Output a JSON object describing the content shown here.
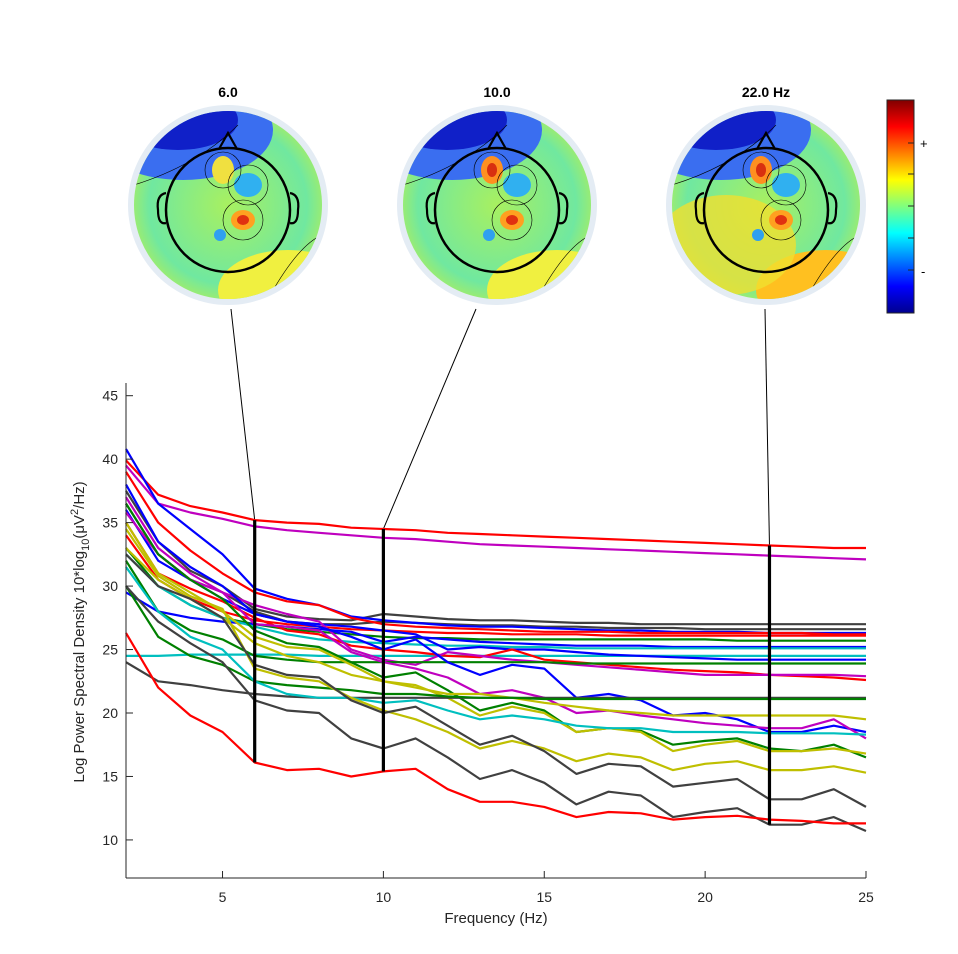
{
  "chart_data": {
    "type": "line",
    "xlabel": "Frequency (Hz)",
    "ylabel": {
      "prefix": "Log Power Spectral Density 10*log",
      "sub": "10",
      "mid": "(μV",
      "sup": "2",
      "suffix": "/Hz)"
    },
    "xlim": [
      2,
      25
    ],
    "ylim": [
      7,
      46
    ],
    "xticks": [
      5,
      10,
      15,
      20,
      25
    ],
    "yticks": [
      10,
      15,
      20,
      25,
      30,
      35,
      40,
      45
    ],
    "grid": false,
    "x": [
      2,
      3,
      4,
      5,
      6,
      7,
      8,
      9,
      10,
      11,
      12,
      13,
      14,
      15,
      16,
      17,
      18,
      19,
      20,
      21,
      22,
      23,
      24,
      25
    ],
    "series": [
      {
        "color": "#ff0000",
        "values": [
          39.9,
          37.2,
          36.3,
          35.8,
          35.2,
          35.0,
          34.9,
          34.6,
          34.5,
          34.4,
          34.2,
          34.1,
          34.0,
          33.9,
          33.8,
          33.7,
          33.6,
          33.5,
          33.4,
          33.3,
          33.2,
          33.1,
          33.0,
          33.0
        ]
      },
      {
        "color": "#bf00bf",
        "values": [
          39.5,
          36.5,
          35.8,
          35.3,
          34.7,
          34.4,
          34.2,
          34.0,
          33.8,
          33.7,
          33.5,
          33.3,
          33.2,
          33.1,
          33.0,
          32.9,
          32.8,
          32.7,
          32.6,
          32.5,
          32.4,
          32.3,
          32.2,
          32.1
        ]
      },
      {
        "color": "#404040",
        "values": [
          37.5,
          33.5,
          31.2,
          30.0,
          28.2,
          27.6,
          27.4,
          27.3,
          27.8,
          27.6,
          27.4,
          27.3,
          27.3,
          27.2,
          27.1,
          27.1,
          27.0,
          27.0,
          27.0,
          27.0,
          27.0,
          27.0,
          27.0,
          27.0
        ]
      },
      {
        "color": "#404040",
        "values": [
          36.5,
          32.5,
          30.5,
          29.5,
          28.0,
          27.2,
          27.0,
          27.0,
          27.2,
          27.1,
          27.0,
          26.9,
          26.9,
          26.8,
          26.8,
          26.7,
          26.7,
          26.7,
          26.6,
          26.6,
          26.6,
          26.6,
          26.6,
          26.6
        ]
      },
      {
        "color": "#0000ff",
        "values": [
          40.8,
          36.5,
          34.5,
          32.5,
          29.8,
          29.0,
          28.5,
          27.6,
          27.3,
          27.1,
          26.9,
          26.8,
          26.8,
          26.7,
          26.6,
          26.5,
          26.5,
          26.4,
          26.4,
          26.4,
          26.3,
          26.3,
          26.3,
          26.3
        ]
      },
      {
        "color": "#ff0000",
        "values": [
          39.0,
          35.0,
          32.8,
          31.0,
          29.5,
          28.8,
          28.5,
          27.5,
          27.0,
          26.8,
          26.7,
          26.6,
          26.5,
          26.4,
          26.4,
          26.4,
          26.3,
          26.3,
          26.3,
          26.3,
          26.3,
          26.3,
          26.2,
          26.2
        ]
      },
      {
        "color": "#ff0000",
        "values": [
          34.0,
          30.5,
          29.0,
          28.0,
          27.3,
          27.0,
          26.8,
          26.6,
          26.5,
          26.4,
          26.3,
          26.3,
          26.2,
          26.2,
          26.2,
          26.1,
          26.1,
          26.1,
          26.1,
          26.1,
          26.1,
          26.1,
          26.1,
          26.1
        ]
      },
      {
        "color": "#008000",
        "values": [
          33.0,
          30.0,
          28.5,
          27.5,
          27.0,
          26.6,
          26.4,
          26.2,
          26.0,
          25.9,
          25.9,
          25.8,
          25.8,
          25.8,
          25.8,
          25.8,
          25.8,
          25.8,
          25.8,
          25.7,
          25.7,
          25.7,
          25.7,
          25.7
        ]
      },
      {
        "color": "#0000ff",
        "values": [
          29.5,
          28.0,
          27.5,
          27.2,
          27.0,
          26.8,
          26.6,
          26.4,
          25.6,
          26.0,
          25.8,
          25.6,
          25.5,
          25.4,
          25.3,
          25.3,
          25.3,
          25.2,
          25.2,
          25.2,
          25.2,
          25.2,
          25.2,
          25.2
        ]
      },
      {
        "color": "#00bfbf",
        "values": [
          32.5,
          30.0,
          28.5,
          27.5,
          26.8,
          26.2,
          25.8,
          25.6,
          25.5,
          25.4,
          25.3,
          25.3,
          25.2,
          25.2,
          25.1,
          25.1,
          25.1,
          25.1,
          25.1,
          25.1,
          25.1,
          25.1,
          25.1,
          25.1
        ]
      },
      {
        "color": "#00bfbf",
        "values": [
          24.5,
          24.5,
          24.6,
          24.6,
          24.6,
          24.6,
          24.5,
          24.5,
          24.5,
          24.5,
          24.5,
          24.5,
          24.5,
          24.5,
          24.5,
          24.5,
          24.5,
          24.5,
          24.5,
          24.5,
          24.5,
          24.5,
          24.5,
          24.5
        ]
      },
      {
        "color": "#0000ff",
        "values": [
          36.0,
          32.0,
          30.5,
          29.0,
          27.8,
          27.2,
          27.0,
          26.8,
          26.5,
          26.2,
          25.0,
          25.2,
          25.0,
          25.0,
          24.8,
          24.6,
          24.5,
          24.4,
          24.3,
          24.2,
          24.2,
          24.2,
          24.2,
          24.2
        ]
      },
      {
        "color": "#ff0000",
        "values": [
          35.0,
          31.0,
          29.8,
          28.8,
          27.5,
          26.5,
          26.2,
          25.3,
          25.0,
          24.8,
          24.5,
          24.4,
          25.0,
          24.2,
          24.0,
          23.8,
          23.6,
          23.4,
          23.3,
          23.2,
          23.0,
          22.9,
          22.8,
          22.6
        ]
      },
      {
        "color": "#bf00bf",
        "values": [
          35.8,
          32.5,
          30.5,
          29.5,
          28.5,
          27.8,
          27.2,
          25.0,
          24.2,
          23.8,
          24.8,
          24.5,
          24.2,
          24.0,
          23.8,
          23.6,
          23.4,
          23.2,
          23.0,
          23.0,
          23.0,
          23.0,
          23.0,
          22.9
        ]
      },
      {
        "color": "#008000",
        "values": [
          32.0,
          28.0,
          26.5,
          25.8,
          24.5,
          24.2,
          24.0,
          24.0,
          24.0,
          24.0,
          24.0,
          24.0,
          24.0,
          24.0,
          23.9,
          23.9,
          23.9,
          23.9,
          23.9,
          23.9,
          23.9,
          23.9,
          23.9,
          23.9
        ]
      },
      {
        "color": "#0000ff",
        "values": [
          38.0,
          33.5,
          31.5,
          30.0,
          27.8,
          27.2,
          26.8,
          26.0,
          25.0,
          25.8,
          24.0,
          23.0,
          23.8,
          23.5,
          21.2,
          21.5,
          21.0,
          19.8,
          20.0,
          19.5,
          18.5,
          18.5,
          19.0,
          18.5
        ]
      },
      {
        "color": "#bf00bf",
        "values": [
          37.0,
          33.0,
          31.0,
          29.5,
          27.0,
          26.8,
          26.5,
          24.8,
          24.0,
          23.5,
          22.8,
          21.5,
          21.8,
          21.2,
          20.0,
          20.2,
          19.8,
          19.5,
          19.2,
          19.0,
          18.8,
          18.8,
          19.5,
          18.0
        ]
      },
      {
        "color": "#008000",
        "values": [
          36.5,
          32.5,
          30.5,
          29.0,
          26.5,
          25.5,
          25.2,
          24.0,
          22.8,
          23.2,
          21.8,
          20.2,
          20.8,
          20.2,
          18.5,
          18.8,
          18.6,
          17.5,
          17.8,
          18.0,
          17.2,
          17.0,
          17.5,
          16.5
        ]
      },
      {
        "color": "#bfbf00",
        "values": [
          35.0,
          31.0,
          29.5,
          28.0,
          26.0,
          25.2,
          25.0,
          23.8,
          22.5,
          22.2,
          21.2,
          19.8,
          20.5,
          20.0,
          18.5,
          18.8,
          18.5,
          17.0,
          17.5,
          17.8,
          17.0,
          17.0,
          17.2,
          16.8
        ]
      },
      {
        "color": "#bfbf00",
        "values": [
          33.0,
          30.5,
          29.0,
          27.5,
          25.5,
          24.5,
          24.0,
          23.0,
          22.5,
          22.0,
          21.5,
          21.5,
          21.2,
          20.8,
          20.5,
          20.2,
          20.0,
          19.8,
          19.8,
          19.8,
          19.8,
          19.8,
          19.8,
          19.5
        ]
      },
      {
        "color": "#404040",
        "values": [
          24.0,
          22.5,
          22.2,
          21.8,
          21.5,
          21.3,
          21.2,
          21.2,
          21.2,
          21.2,
          21.2,
          21.2,
          21.2,
          21.2,
          21.2,
          21.2,
          21.2,
          21.2,
          21.2,
          21.2,
          21.2,
          21.2,
          21.2,
          21.2
        ]
      },
      {
        "color": "#008000",
        "values": [
          30.0,
          26.0,
          24.5,
          23.8,
          22.5,
          22.2,
          22.0,
          21.8,
          21.5,
          21.5,
          21.3,
          21.2,
          21.2,
          21.1,
          21.1,
          21.1,
          21.1,
          21.1,
          21.1,
          21.1,
          21.1,
          21.1,
          21.1,
          21.1
        ]
      },
      {
        "color": "#00bfbf",
        "values": [
          31.5,
          28.0,
          26.0,
          25.0,
          22.5,
          21.5,
          21.2,
          21.2,
          20.8,
          21.0,
          20.2,
          19.5,
          19.8,
          19.5,
          19.0,
          18.8,
          18.8,
          18.5,
          18.5,
          18.5,
          18.4,
          18.4,
          18.4,
          18.3
        ]
      },
      {
        "color": "#bfbf00",
        "values": [
          34.5,
          30.8,
          29.2,
          28.2,
          23.5,
          22.8,
          22.5,
          21.2,
          20.2,
          19.5,
          18.5,
          17.2,
          17.8,
          17.2,
          16.2,
          16.8,
          16.5,
          15.5,
          16.0,
          16.2,
          15.5,
          15.5,
          15.8,
          15.3
        ]
      },
      {
        "color": "#404040",
        "values": [
          30.0,
          27.2,
          25.5,
          24.0,
          21.0,
          20.2,
          20.0,
          18.0,
          17.2,
          18.0,
          16.5,
          14.8,
          15.5,
          14.5,
          12.8,
          13.8,
          13.5,
          11.8,
          12.2,
          12.5,
          11.2,
          11.2,
          11.8,
          10.7
        ]
      },
      {
        "color": "#404040",
        "values": [
          32.5,
          30.0,
          29.0,
          27.5,
          23.8,
          23.0,
          22.8,
          21.0,
          20.0,
          20.5,
          19.0,
          17.5,
          18.2,
          17.0,
          15.2,
          16.0,
          15.8,
          14.2,
          14.5,
          14.8,
          13.2,
          13.2,
          14.0,
          12.6
        ]
      },
      {
        "color": "#ff0000",
        "values": [
          26.3,
          22.0,
          19.8,
          18.5,
          16.1,
          15.5,
          15.6,
          15.0,
          15.4,
          15.6,
          14.0,
          13.0,
          13.0,
          12.6,
          11.8,
          12.2,
          12.1,
          11.6,
          11.8,
          11.9,
          11.6,
          11.5,
          11.3,
          11.3
        ]
      }
    ],
    "markers": [
      {
        "x": 6,
        "ymin": 16.1,
        "ymax": 35.2
      },
      {
        "x": 10,
        "ymin": 15.4,
        "ymax": 34.5
      },
      {
        "x": 22,
        "ymin": 11.2,
        "ymax": 33.2
      }
    ],
    "topoplots": [
      {
        "title": "6.0"
      },
      {
        "title": "10.0"
      },
      {
        "title": "22.0 Hz"
      }
    ],
    "colorbar": {
      "colormap": "jet",
      "plus_label": "+",
      "minus_label": "-"
    }
  }
}
